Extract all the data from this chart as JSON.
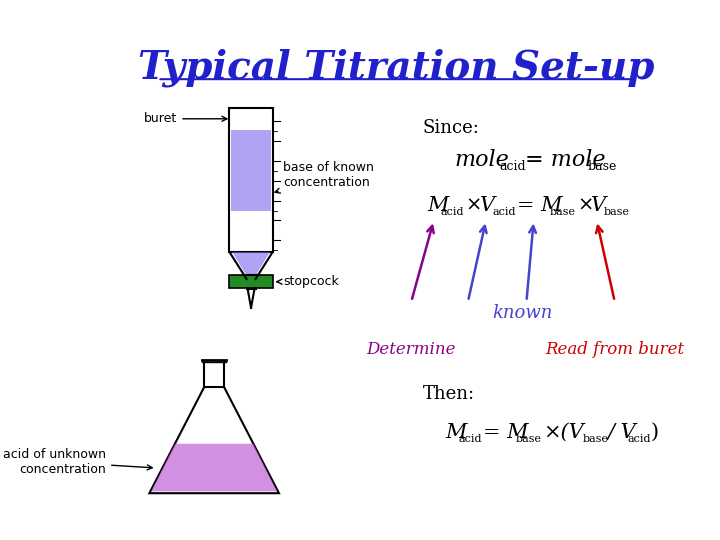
{
  "title": "Typical Titration Set-up",
  "title_color": "#2020CC",
  "title_fontsize": 28,
  "bg_color": "#FFFFFF",
  "since_text": "Since:",
  "known_text": "known",
  "determine_text": "Determine",
  "read_text": "Read from buret",
  "then_text": "Then:",
  "buret_label": "buret",
  "base_label": "base of known\nconcentration",
  "stopcock_label": "stopcock",
  "acid_label": "acid of unknown\nconcentration",
  "arrow_color_purple": "#8B008B",
  "arrow_color_blue": "#4444CC",
  "arrow_color_red": "#CC0000",
  "known_color": "#4444CC",
  "determine_color": "#8B008B",
  "read_color": "#CC0000",
  "liquid_color": "#7B68EE",
  "liquid_color2": "#BA55D3",
  "stopcock_color": "#228B22"
}
